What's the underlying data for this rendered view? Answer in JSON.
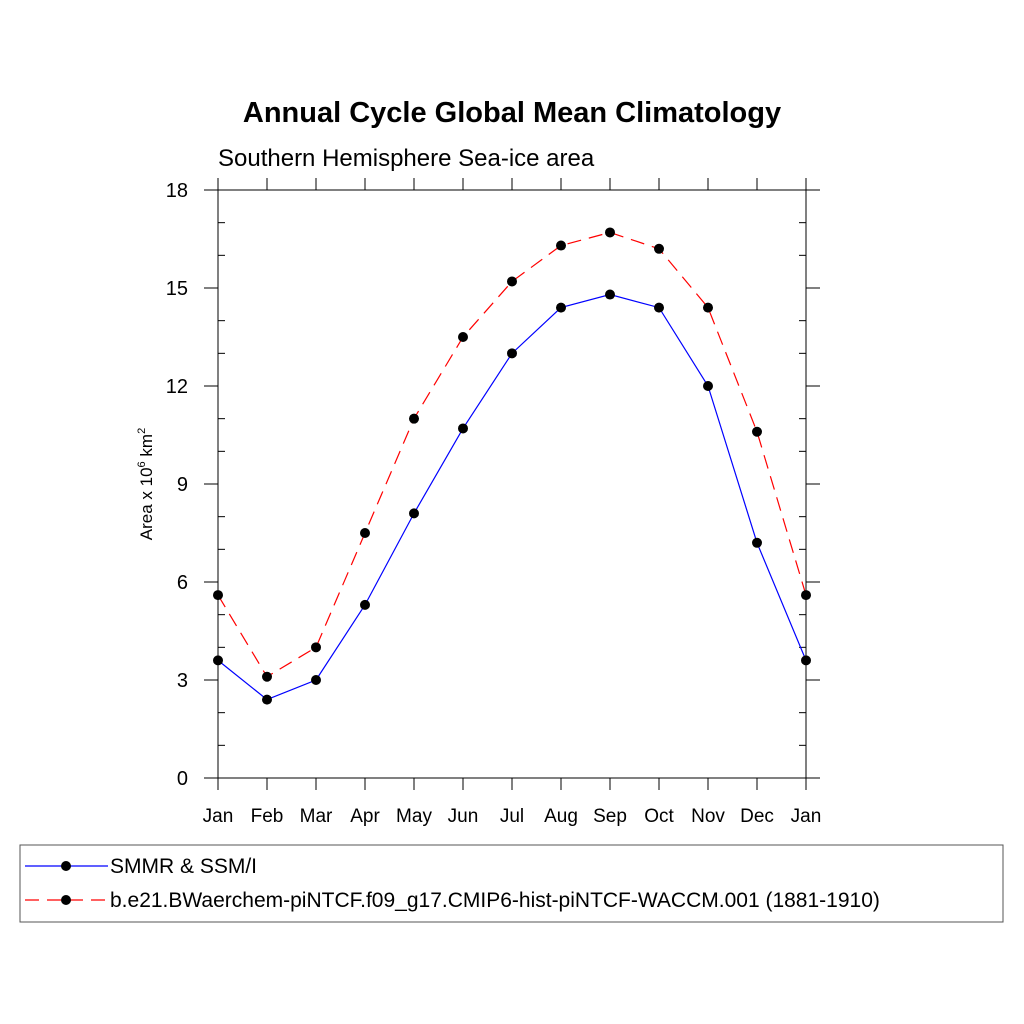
{
  "chart_data": {
    "type": "line",
    "title": "Annual Cycle Global Mean Climatology",
    "subtitle": "Southern Hemisphere Sea-ice area",
    "ylabel": {
      "base": "Area x 10",
      "exp1": "6",
      "unit": " km",
      "exp2": "2"
    },
    "xlabel": "",
    "ylim": [
      0,
      18
    ],
    "yticks": [
      0,
      3,
      6,
      9,
      12,
      15,
      18
    ],
    "categories": [
      "Jan",
      "Feb",
      "Mar",
      "Apr",
      "May",
      "Jun",
      "Jul",
      "Aug",
      "Sep",
      "Oct",
      "Nov",
      "Dec",
      "Jan"
    ],
    "series": [
      {
        "name": "SMMR & SSM/I",
        "color": "#0000ff",
        "dash": "solid",
        "values": [
          3.6,
          2.4,
          3.0,
          5.3,
          8.1,
          10.7,
          13.0,
          14.4,
          14.8,
          14.4,
          12.0,
          7.2,
          3.6
        ]
      },
      {
        "name": "b.e21.BWaerchem-piNTCF.f09_g17.CMIP6-hist-piNTCF-WACCM.001 (1881-1910)",
        "color": "#ff0000",
        "dash": "dashed",
        "values": [
          5.6,
          3.1,
          4.0,
          7.5,
          11.0,
          13.5,
          15.2,
          16.3,
          16.7,
          16.2,
          14.4,
          10.6,
          5.6
        ]
      }
    ],
    "marker_color": "#000000",
    "legend_position": "bottom"
  }
}
